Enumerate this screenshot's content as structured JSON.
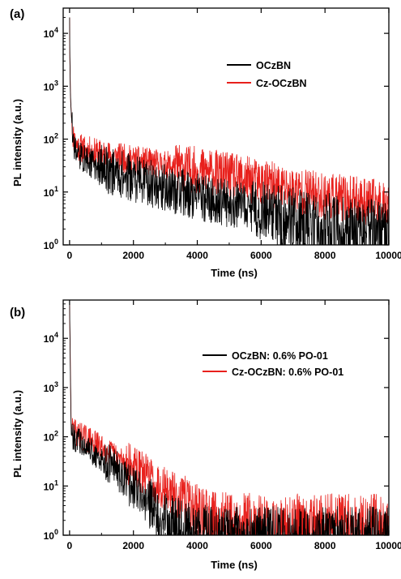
{
  "chart_data": [
    {
      "type": "line",
      "panel_label": "(a)",
      "xlabel": "Time (ns)",
      "ylabel": "PL intensity (a.u.)",
      "xlim": [
        -200,
        10000
      ],
      "ylim": [
        1,
        30000
      ],
      "yscale": "log",
      "x_ticks": [
        0,
        2000,
        4000,
        6000,
        8000,
        10000
      ],
      "x_tick_labels": [
        "0",
        "2000",
        "4000",
        "6000",
        "8000",
        "10000"
      ],
      "y_ticks": [
        1,
        10,
        100,
        1000,
        10000
      ],
      "y_tick_labels": [
        [
          "10",
          "0"
        ],
        [
          "10",
          "1"
        ],
        [
          "10",
          "2"
        ],
        [
          "10",
          "3"
        ],
        [
          "10",
          "4"
        ]
      ],
      "grid": false,
      "legend_position": "top-right",
      "series": [
        {
          "name": "OCzBN",
          "color": "#000000",
          "x": [
            0,
            10,
            30,
            60,
            100,
            150,
            200,
            300,
            500,
            1000,
            2000,
            3000,
            4000,
            5000,
            6000,
            7000,
            8000,
            9000,
            10000
          ],
          "y": [
            20000,
            3000,
            600,
            250,
            120,
            80,
            60,
            50,
            40,
            28,
            18,
            12,
            8,
            6,
            4.5,
            3.5,
            2.8,
            2.2,
            2.0
          ]
        },
        {
          "name": "Cz-OCzBN",
          "color": "#e8201c",
          "x": [
            0,
            10,
            30,
            60,
            100,
            150,
            200,
            300,
            500,
            1000,
            2000,
            3000,
            4000,
            5000,
            6000,
            7000,
            8000,
            9000,
            10000
          ],
          "y": [
            20000,
            3000,
            600,
            250,
            130,
            95,
            80,
            70,
            62,
            52,
            40,
            32,
            26,
            20,
            15,
            11,
            8.5,
            7,
            6
          ]
        }
      ]
    },
    {
      "type": "line",
      "panel_label": "(b)",
      "xlabel": "Time (ns)",
      "ylabel": "PL intensity (a.u.)",
      "xlim": [
        -200,
        10000
      ],
      "ylim": [
        1,
        60000
      ],
      "yscale": "log",
      "x_ticks": [
        0,
        2000,
        4000,
        6000,
        8000,
        10000
      ],
      "x_tick_labels": [
        "0",
        "2000",
        "4000",
        "6000",
        "8000",
        "10000"
      ],
      "y_ticks": [
        1,
        10,
        100,
        1000,
        10000
      ],
      "y_tick_labels": [
        [
          "10",
          "0"
        ],
        [
          "10",
          "1"
        ],
        [
          "10",
          "2"
        ],
        [
          "10",
          "3"
        ],
        [
          "10",
          "4"
        ]
      ],
      "grid": false,
      "legend_position": "top-right",
      "series": [
        {
          "name": "OCzBN: 0.6% PO-01",
          "color": "#000000",
          "x": [
            0,
            50,
            200,
            500,
            1000,
            1500,
            2000,
            2500,
            3000,
            3500,
            4000,
            5000,
            6000,
            7000,
            8000,
            9000,
            10000
          ],
          "y": [
            50000,
            110,
            90,
            65,
            35,
            18,
            9,
            4.5,
            2.3,
            1.5,
            1.2,
            1.1,
            1.1,
            1.1,
            1.1,
            1.1,
            1.1
          ]
        },
        {
          "name": "Cz-OCzBN: 0.6% PO-01",
          "color": "#e8201c",
          "x": [
            0,
            50,
            200,
            500,
            1000,
            1500,
            2000,
            2500,
            3000,
            3500,
            4000,
            4500,
            5000,
            6000,
            7000,
            8000,
            9000,
            10000
          ],
          "y": [
            50000,
            150,
            120,
            95,
            60,
            38,
            24,
            15,
            9,
            5.5,
            3.5,
            2.6,
            2.2,
            2.0,
            2.0,
            2.0,
            2.0,
            2.0
          ]
        }
      ]
    }
  ]
}
